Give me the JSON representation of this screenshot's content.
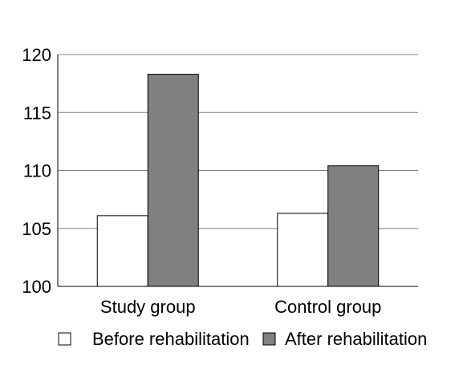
{
  "chart_data": {
    "type": "bar",
    "title": "",
    "xlabel": "",
    "ylabel": "",
    "categories": [
      "Study group",
      "Control group"
    ],
    "series": [
      {
        "name": "Before rehabilitation",
        "values": [
          106.1,
          106.3
        ],
        "color": "#ffffff"
      },
      {
        "name": "After rehabilitation",
        "values": [
          118.3,
          110.4
        ],
        "color": "#808080"
      }
    ],
    "ylim": [
      100,
      120
    ],
    "yticks": [
      100,
      105,
      110,
      115,
      120
    ],
    "grid": true,
    "legend_position": "bottom"
  }
}
